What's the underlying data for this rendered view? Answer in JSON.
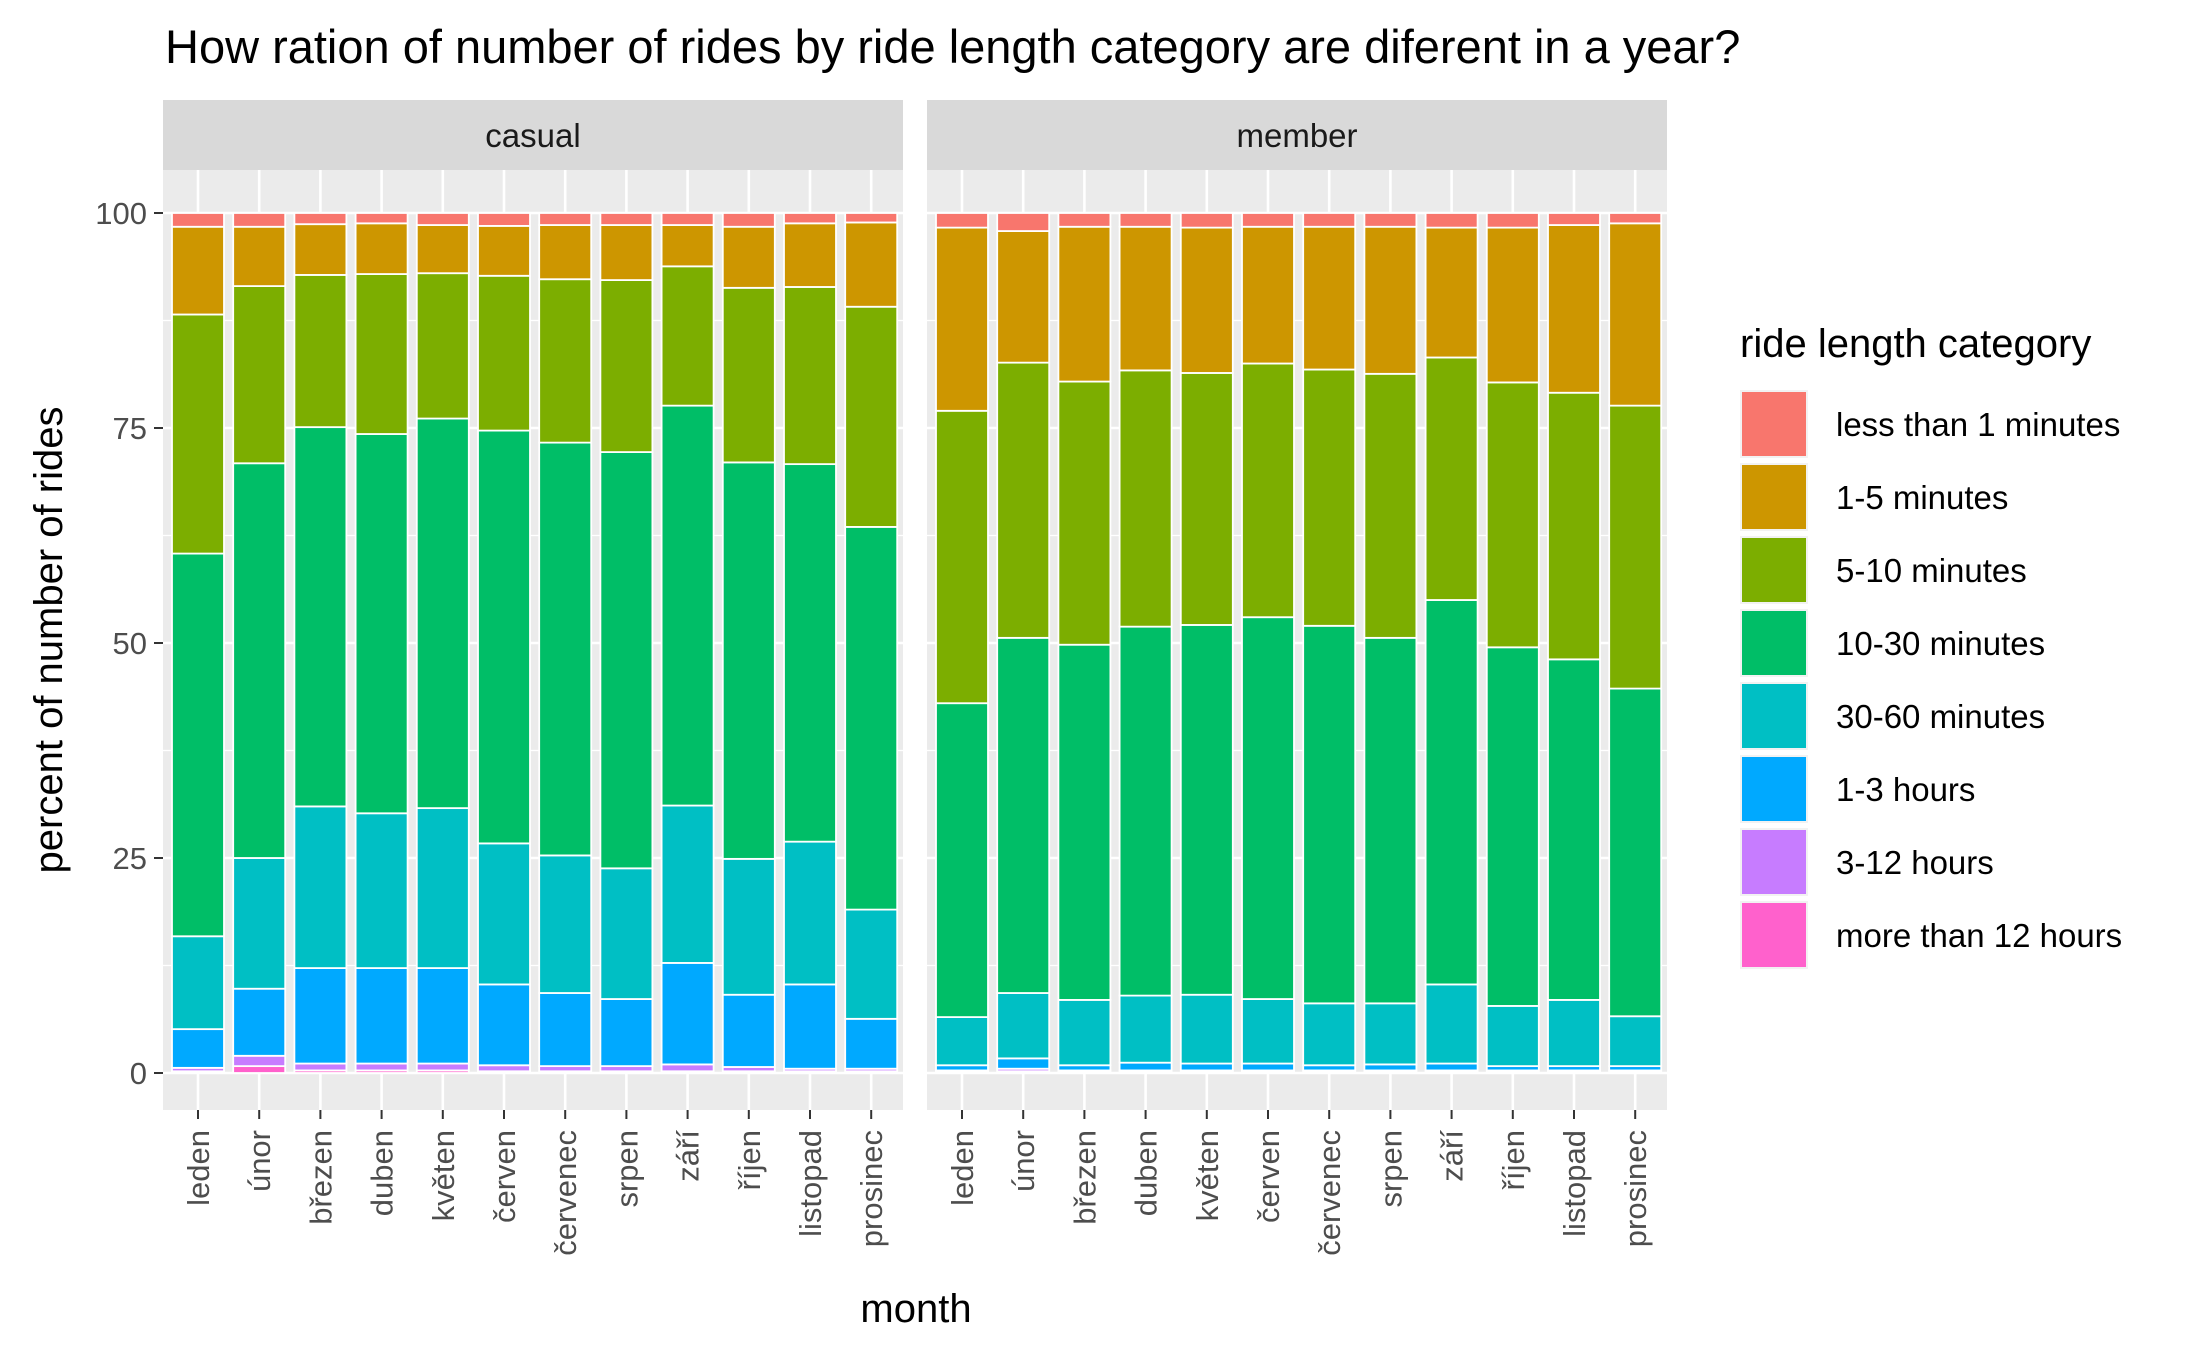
{
  "chart_data": {
    "type": "bar",
    "stacked": true,
    "title": "How ration of number of rides by ride length category are diferent in a year?",
    "xlabel": "month",
    "ylabel": "percent of number of rides",
    "ylim": [
      0,
      100
    ],
    "yticks": [
      0,
      25,
      50,
      75,
      100
    ],
    "categories": [
      "leden",
      "únor",
      "březen",
      "duben",
      "květen",
      "červen",
      "červenec",
      "srpen",
      "září",
      "říjen",
      "listopad",
      "prosinec"
    ],
    "legend": {
      "title": "ride length category",
      "position": "right",
      "entries": [
        "less than 1 minutes",
        "1-5 minutes",
        "5-10 minutes",
        "10-30 minutes",
        "30-60 minutes",
        "1-3 hours",
        "3-12 hours",
        "more than 12 hours"
      ]
    },
    "colors": [
      "#F8766D",
      "#CD9600",
      "#7CAE00",
      "#00BE67",
      "#00BFC4",
      "#00A9FF",
      "#C77CFF",
      "#FF61CC"
    ],
    "grid": true,
    "panels": [
      {
        "name": "casual",
        "series": [
          {
            "name": "more than 12 hours",
            "values": [
              0.2,
              0.8,
              0.3,
              0.3,
              0.3,
              0.2,
              0.2,
              0.2,
              0.2,
              0.2,
              0.2,
              0.2
            ]
          },
          {
            "name": "3-12 hours",
            "values": [
              0.4,
              1.2,
              0.8,
              0.8,
              0.8,
              0.7,
              0.6,
              0.6,
              0.8,
              0.5,
              0.3,
              0.3
            ]
          },
          {
            "name": "1-3 hours",
            "values": [
              4.5,
              7.8,
              11.1,
              11.1,
              11.1,
              9.4,
              8.5,
              7.8,
              11.8,
              8.4,
              9.8,
              5.8
            ]
          },
          {
            "name": "30-60 minutes",
            "values": [
              10.8,
              15.2,
              18.8,
              18.0,
              18.6,
              16.4,
              16.0,
              15.2,
              18.3,
              15.8,
              16.6,
              12.7
            ]
          },
          {
            "name": "10-30 minutes",
            "values": [
              44.5,
              45.9,
              44.1,
              44.1,
              45.3,
              48.0,
              48.0,
              48.4,
              46.5,
              46.1,
              43.9,
              44.5
            ]
          },
          {
            "name": "5-10 minutes",
            "values": [
              27.8,
              20.6,
              17.7,
              18.6,
              16.9,
              18.0,
              19.0,
              20.0,
              16.2,
              20.3,
              20.6,
              25.6
            ]
          },
          {
            "name": "1-5 minutes",
            "values": [
              10.2,
              6.9,
              5.9,
              5.9,
              5.6,
              5.8,
              6.3,
              6.4,
              4.8,
              7.1,
              7.4,
              9.8
            ]
          },
          {
            "name": "less than 1 minutes",
            "values": [
              1.6,
              1.6,
              1.3,
              1.2,
              1.4,
              1.5,
              1.4,
              1.4,
              1.4,
              1.6,
              1.2,
              1.1
            ]
          }
        ]
      },
      {
        "name": "member",
        "series": [
          {
            "name": "more than 12 hours",
            "values": [
              0.1,
              0.2,
              0.1,
              0.1,
              0.1,
              0.1,
              0.1,
              0.1,
              0.1,
              0.1,
              0.1,
              0.1
            ]
          },
          {
            "name": "3-12 hours",
            "values": [
              0.2,
              0.3,
              0.2,
              0.2,
              0.2,
              0.2,
              0.2,
              0.2,
              0.2,
              0.2,
              0.2,
              0.2
            ]
          },
          {
            "name": "1-3 hours",
            "values": [
              0.6,
              1.2,
              0.6,
              0.9,
              0.8,
              0.8,
              0.6,
              0.7,
              0.8,
              0.5,
              0.5,
              0.5
            ]
          },
          {
            "name": "30-60 minutes",
            "values": [
              5.6,
              7.6,
              7.6,
              7.8,
              8.0,
              7.5,
              7.2,
              7.1,
              9.2,
              7.0,
              7.7,
              5.8
            ]
          },
          {
            "name": "10-30 minutes",
            "values": [
              36.5,
              41.3,
              41.3,
              42.9,
              43.0,
              44.4,
              43.9,
              42.5,
              44.7,
              41.7,
              39.6,
              38.1
            ]
          },
          {
            "name": "5-10 minutes",
            "values": [
              34.0,
              32.0,
              30.6,
              29.8,
              29.3,
              29.5,
              29.8,
              30.7,
              28.2,
              30.8,
              31.0,
              32.9
            ]
          },
          {
            "name": "1-5 minutes",
            "values": [
              21.3,
              15.3,
              18.0,
              16.7,
              16.9,
              15.9,
              16.6,
              17.1,
              15.1,
              18.0,
              19.5,
              21.2
            ]
          },
          {
            "name": "less than 1 minutes",
            "values": [
              1.7,
              2.1,
              1.6,
              1.6,
              1.7,
              1.6,
              1.6,
              1.6,
              1.7,
              1.7,
              1.4,
              1.2
            ]
          }
        ]
      }
    ]
  }
}
